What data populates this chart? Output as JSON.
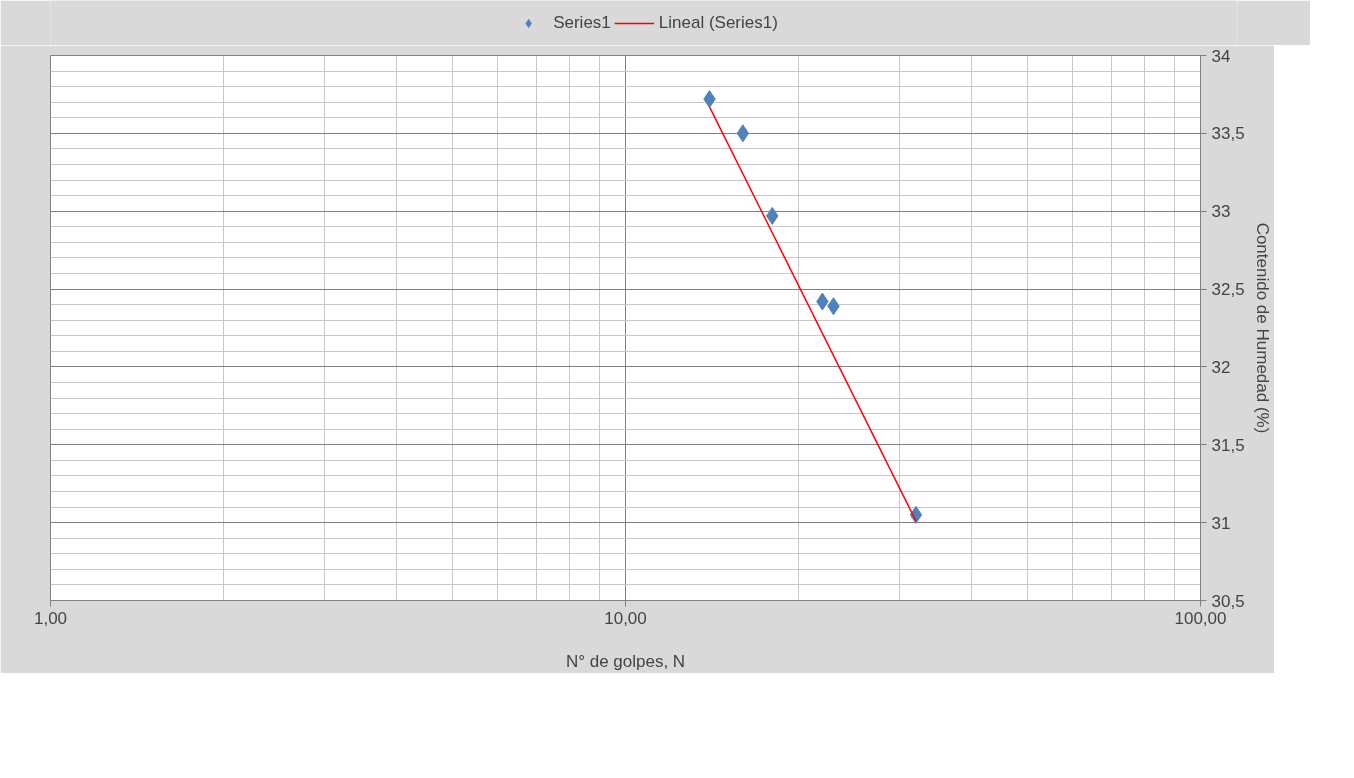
{
  "chart_data": {
    "type": "scatter",
    "xlabel": "N° de golpes, N",
    "ylabel": "Contenido de Humedad (%)",
    "log": "x",
    "xlim": [
      1,
      100
    ],
    "xticks": [
      {
        "value": 1,
        "label": "1,00"
      },
      {
        "value": 10,
        "label": "10,00"
      },
      {
        "value": 100,
        "label": "100,00"
      }
    ],
    "ylim": [
      30.5,
      34
    ],
    "yticks": [
      {
        "value": 30.5,
        "label": "30,5"
      },
      31,
      {
        "value": 31.5,
        "label": "31,5"
      },
      32,
      {
        "value": 32.5,
        "label": "32,5"
      },
      33,
      {
        "value": 33.5,
        "label": "33,5"
      },
      34
    ],
    "grid": true,
    "legend": "top",
    "series": [
      {
        "name": "Series1",
        "marker": "diamond",
        "color": "#4f81bd",
        "x": [
          14,
          16,
          18,
          22,
          23,
          32
        ],
        "values": [
          33.72,
          33.5,
          32.97,
          32.42,
          32.39,
          31.05
        ]
      },
      {
        "name": "Lineal (Series1)",
        "type": "line",
        "color": "#ff0000",
        "x": [
          14,
          32
        ],
        "values": [
          33.67,
          31.01
        ]
      }
    ]
  }
}
